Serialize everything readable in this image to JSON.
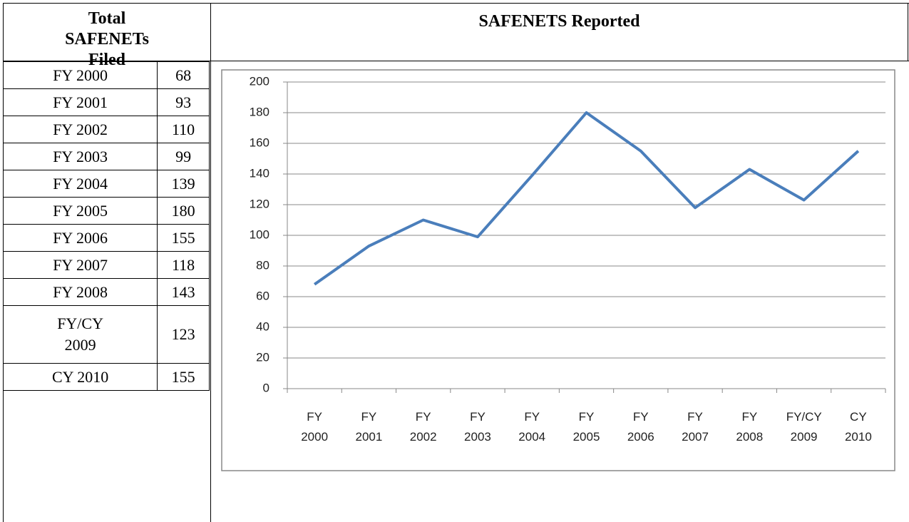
{
  "header": {
    "left": "Total SAFENETs Filed",
    "right": "SAFENETS Reported"
  },
  "table": {
    "rows": [
      [
        "FY 2000",
        68
      ],
      [
        "FY 2001",
        93
      ],
      [
        "FY 2002",
        110
      ],
      [
        "FY 2003",
        99
      ],
      [
        "FY 2004",
        139
      ],
      [
        "FY 2005",
        180
      ],
      [
        "FY 2006",
        155
      ],
      [
        "FY 2007",
        118
      ],
      [
        "FY 2008",
        143
      ],
      [
        "FY/CY 2009",
        123
      ],
      [
        "CY 2010",
        155
      ]
    ]
  },
  "chart_data": {
    "type": "line",
    "categories": [
      "FY 2000",
      "FY 2001",
      "FY 2002",
      "FY 2003",
      "FY 2004",
      "FY 2005",
      "FY 2006",
      "FY 2007",
      "FY 2008",
      "FY/CY 2009",
      "CY 2010"
    ],
    "series": [
      {
        "color": "#4a7ebb",
        "values": [
          68,
          93,
          110,
          99,
          139,
          180,
          155,
          118,
          143,
          123,
          155
        ]
      }
    ],
    "ylim": [
      0,
      200
    ],
    "yticks": [
      0,
      20,
      40,
      60,
      80,
      100,
      120,
      140,
      160,
      180,
      200
    ],
    "grid": true
  }
}
